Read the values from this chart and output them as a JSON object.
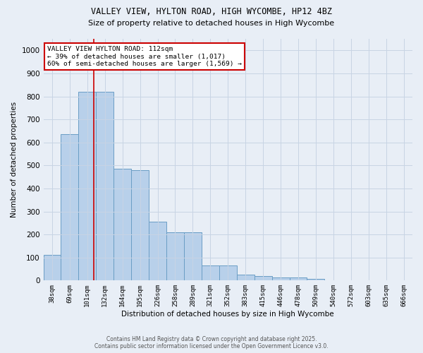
{
  "title1": "VALLEY VIEW, HYLTON ROAD, HIGH WYCOMBE, HP12 4BZ",
  "title2": "Size of property relative to detached houses in High Wycombe",
  "xlabel": "Distribution of detached houses by size in High Wycombe",
  "ylabel": "Number of detached properties",
  "footer1": "Contains HM Land Registry data © Crown copyright and database right 2025.",
  "footer2": "Contains public sector information licensed under the Open Government Licence v3.0.",
  "categories": [
    "38sqm",
    "69sqm",
    "101sqm",
    "132sqm",
    "164sqm",
    "195sqm",
    "226sqm",
    "258sqm",
    "289sqm",
    "321sqm",
    "352sqm",
    "383sqm",
    "415sqm",
    "446sqm",
    "478sqm",
    "509sqm",
    "540sqm",
    "572sqm",
    "603sqm",
    "635sqm",
    "666sqm"
  ],
  "values": [
    110,
    635,
    820,
    820,
    485,
    480,
    255,
    210,
    210,
    65,
    65,
    27,
    18,
    12,
    12,
    8,
    0,
    0,
    0,
    0,
    0
  ],
  "bar_color": "#b8d0ea",
  "bar_edge_color": "#6a9ec5",
  "grid_color": "#c8d4e4",
  "bg_color": "#e8eef6",
  "annotation_text": "VALLEY VIEW HYLTON ROAD: 112sqm\n← 39% of detached houses are smaller (1,017)\n60% of semi-detached houses are larger (1,569) →",
  "annotation_box_color": "#ffffff",
  "annotation_box_edge": "#cc0000",
  "vline_x": 2.35,
  "vline_color": "#cc0000",
  "ylim": [
    0,
    1050
  ],
  "yticks": [
    0,
    100,
    200,
    300,
    400,
    500,
    600,
    700,
    800,
    900,
    1000
  ]
}
